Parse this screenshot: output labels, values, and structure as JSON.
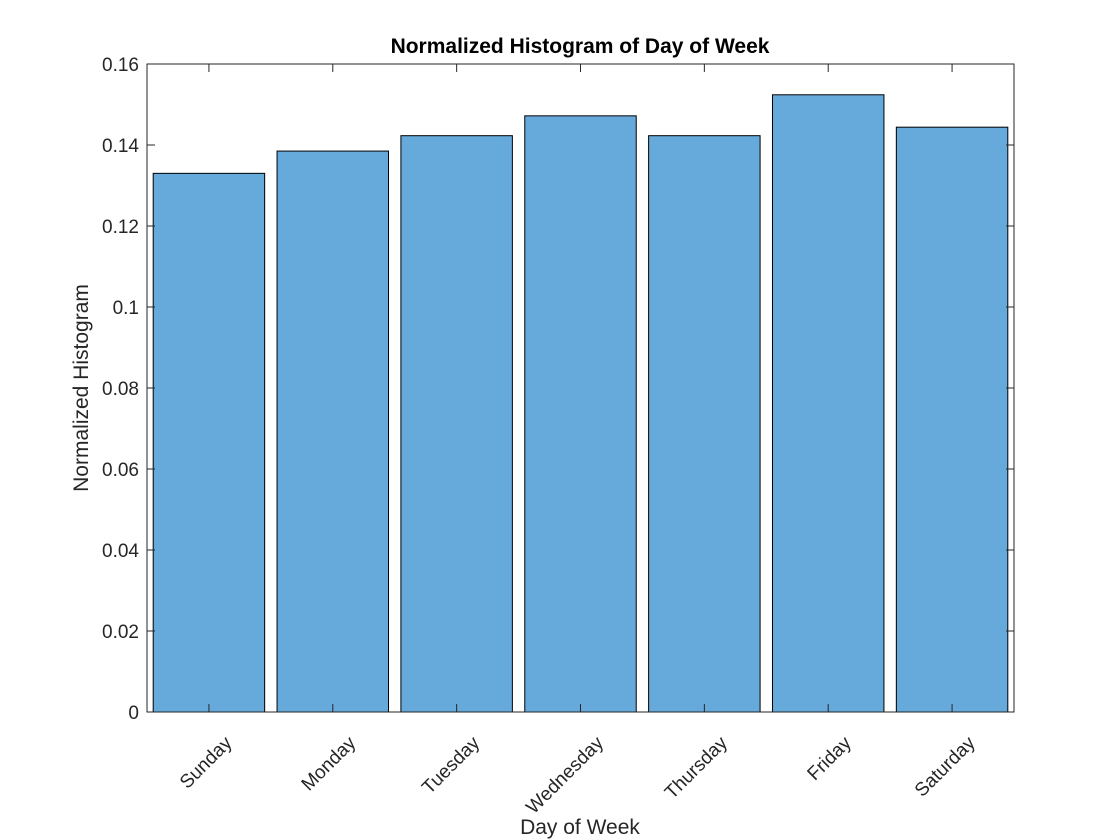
{
  "chart_data": {
    "type": "bar",
    "title": "Normalized Histogram of Day of Week",
    "xlabel": "Day of Week",
    "ylabel": "Normalized Histogram",
    "categories": [
      "Sunday",
      "Monday",
      "Tuesday",
      "Wednesday",
      "Thursday",
      "Friday",
      "Saturday"
    ],
    "values": [
      0.133,
      0.1385,
      0.1423,
      0.1472,
      0.1423,
      0.1524,
      0.1444
    ],
    "ylim": [
      0,
      0.16
    ],
    "yticks": [
      0,
      0.02,
      0.04,
      0.06,
      0.08,
      0.1,
      0.12,
      0.14,
      0.16
    ],
    "ytick_labels": [
      "0",
      "0.02",
      "0.04",
      "0.06",
      "0.08",
      "0.1",
      "0.12",
      "0.14",
      "0.16"
    ],
    "grid": false,
    "colors": {
      "bar_fill": "#66AADB",
      "bar_edge": "#000000",
      "axis": "#262626"
    }
  }
}
